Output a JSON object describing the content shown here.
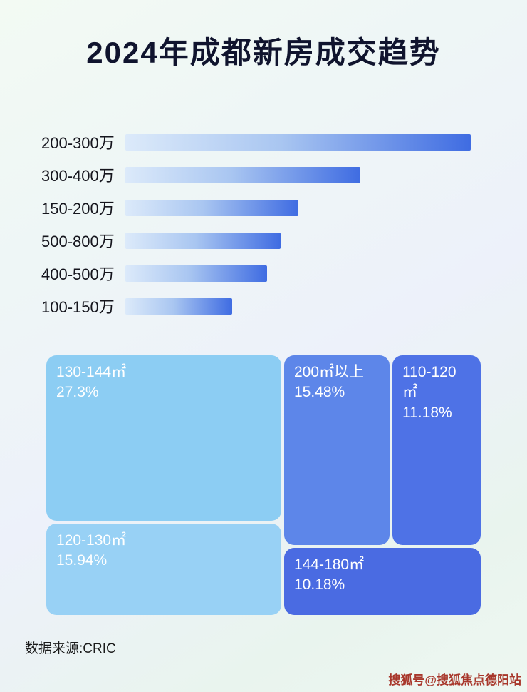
{
  "page": {
    "title": "2024年成都新房成交趋势",
    "source_note": "数据来源:CRIC",
    "watermark": "搜狐号@搜狐焦点德阳站"
  },
  "colors": {
    "background": "#eef5f4",
    "title_text": "#10142e",
    "bar_gradient_start": "#dceafa",
    "bar_gradient_end": "#3f6ce2",
    "block_130_144": "#8ccdf3",
    "block_200_plus": "#5d86e9",
    "block_110_120": "#4e72e6",
    "block_120_130": "#98d1f5",
    "block_144_180": "#4a6be2",
    "watermark_text": "#a8372b"
  },
  "chart_data": [
    {
      "type": "bar",
      "orientation": "horizontal",
      "title": "2024年成都新房成交趋势",
      "categories": [
        "200-300万",
        "300-400万",
        "150-200万",
        "500-800万",
        "400-500万",
        "100-150万"
      ],
      "values_pct_of_max": [
        100,
        68,
        50,
        45,
        41,
        31
      ],
      "value_labels_shown": false,
      "grid": false,
      "legend": "none"
    },
    {
      "type": "treemap",
      "items": [
        {
          "label": "130-144㎡",
          "value_pct": 27.3,
          "display": "27.3%"
        },
        {
          "label": "120-130㎡",
          "value_pct": 15.94,
          "display": "15.94%"
        },
        {
          "label": "200㎡以上",
          "value_pct": 15.48,
          "display": "15.48%"
        },
        {
          "label": "110-120㎡",
          "value_pct": 11.18,
          "display": "11.18%"
        },
        {
          "label": "144-180㎡",
          "value_pct": 10.18,
          "display": "10.18%"
        }
      ]
    }
  ]
}
